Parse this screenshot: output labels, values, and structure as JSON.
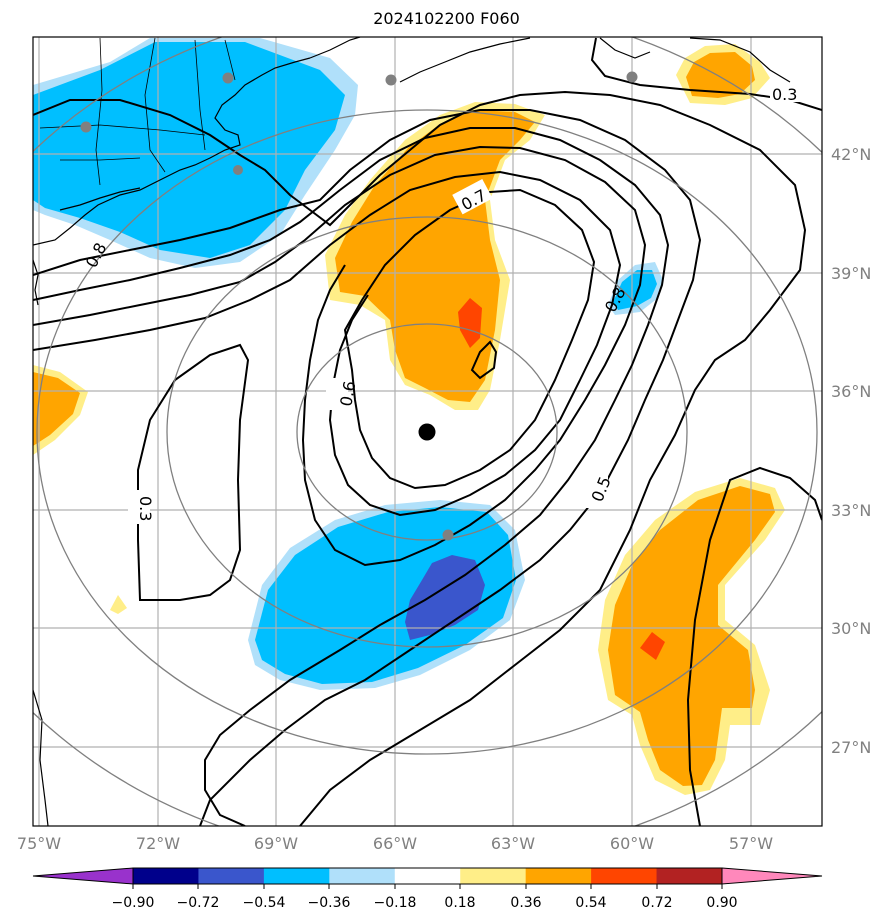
{
  "title": "2024102200 F060",
  "lon_labels": [
    "75°W",
    "72°W",
    "69°W",
    "66°W",
    "63°W",
    "60°W",
    "57°W"
  ],
  "lat_labels": [
    "42°N",
    "39°N",
    "36°N",
    "33°N",
    "30°N",
    "27°N"
  ],
  "contour_labels": [
    "0.3",
    "0.7",
    "0.8",
    "0.8",
    "0.6",
    "0.5",
    "0.3"
  ],
  "colorbar": {
    "tick_labels": [
      "−0.90",
      "−0.72",
      "−0.54",
      "−0.36",
      "−0.18",
      "0.18",
      "0.36",
      "0.54",
      "0.72",
      "0.90"
    ],
    "colors": [
      "#9932cc",
      "#00008b",
      "#3a56cc",
      "#00bfff",
      "#b0e0fa",
      "#ffffff",
      "#ffee88",
      "#ffa500",
      "#ff4500",
      "#b22222",
      "#ff88bb"
    ]
  },
  "center_marker": {
    "lon": -65.1,
    "lat": 35.0
  }
}
